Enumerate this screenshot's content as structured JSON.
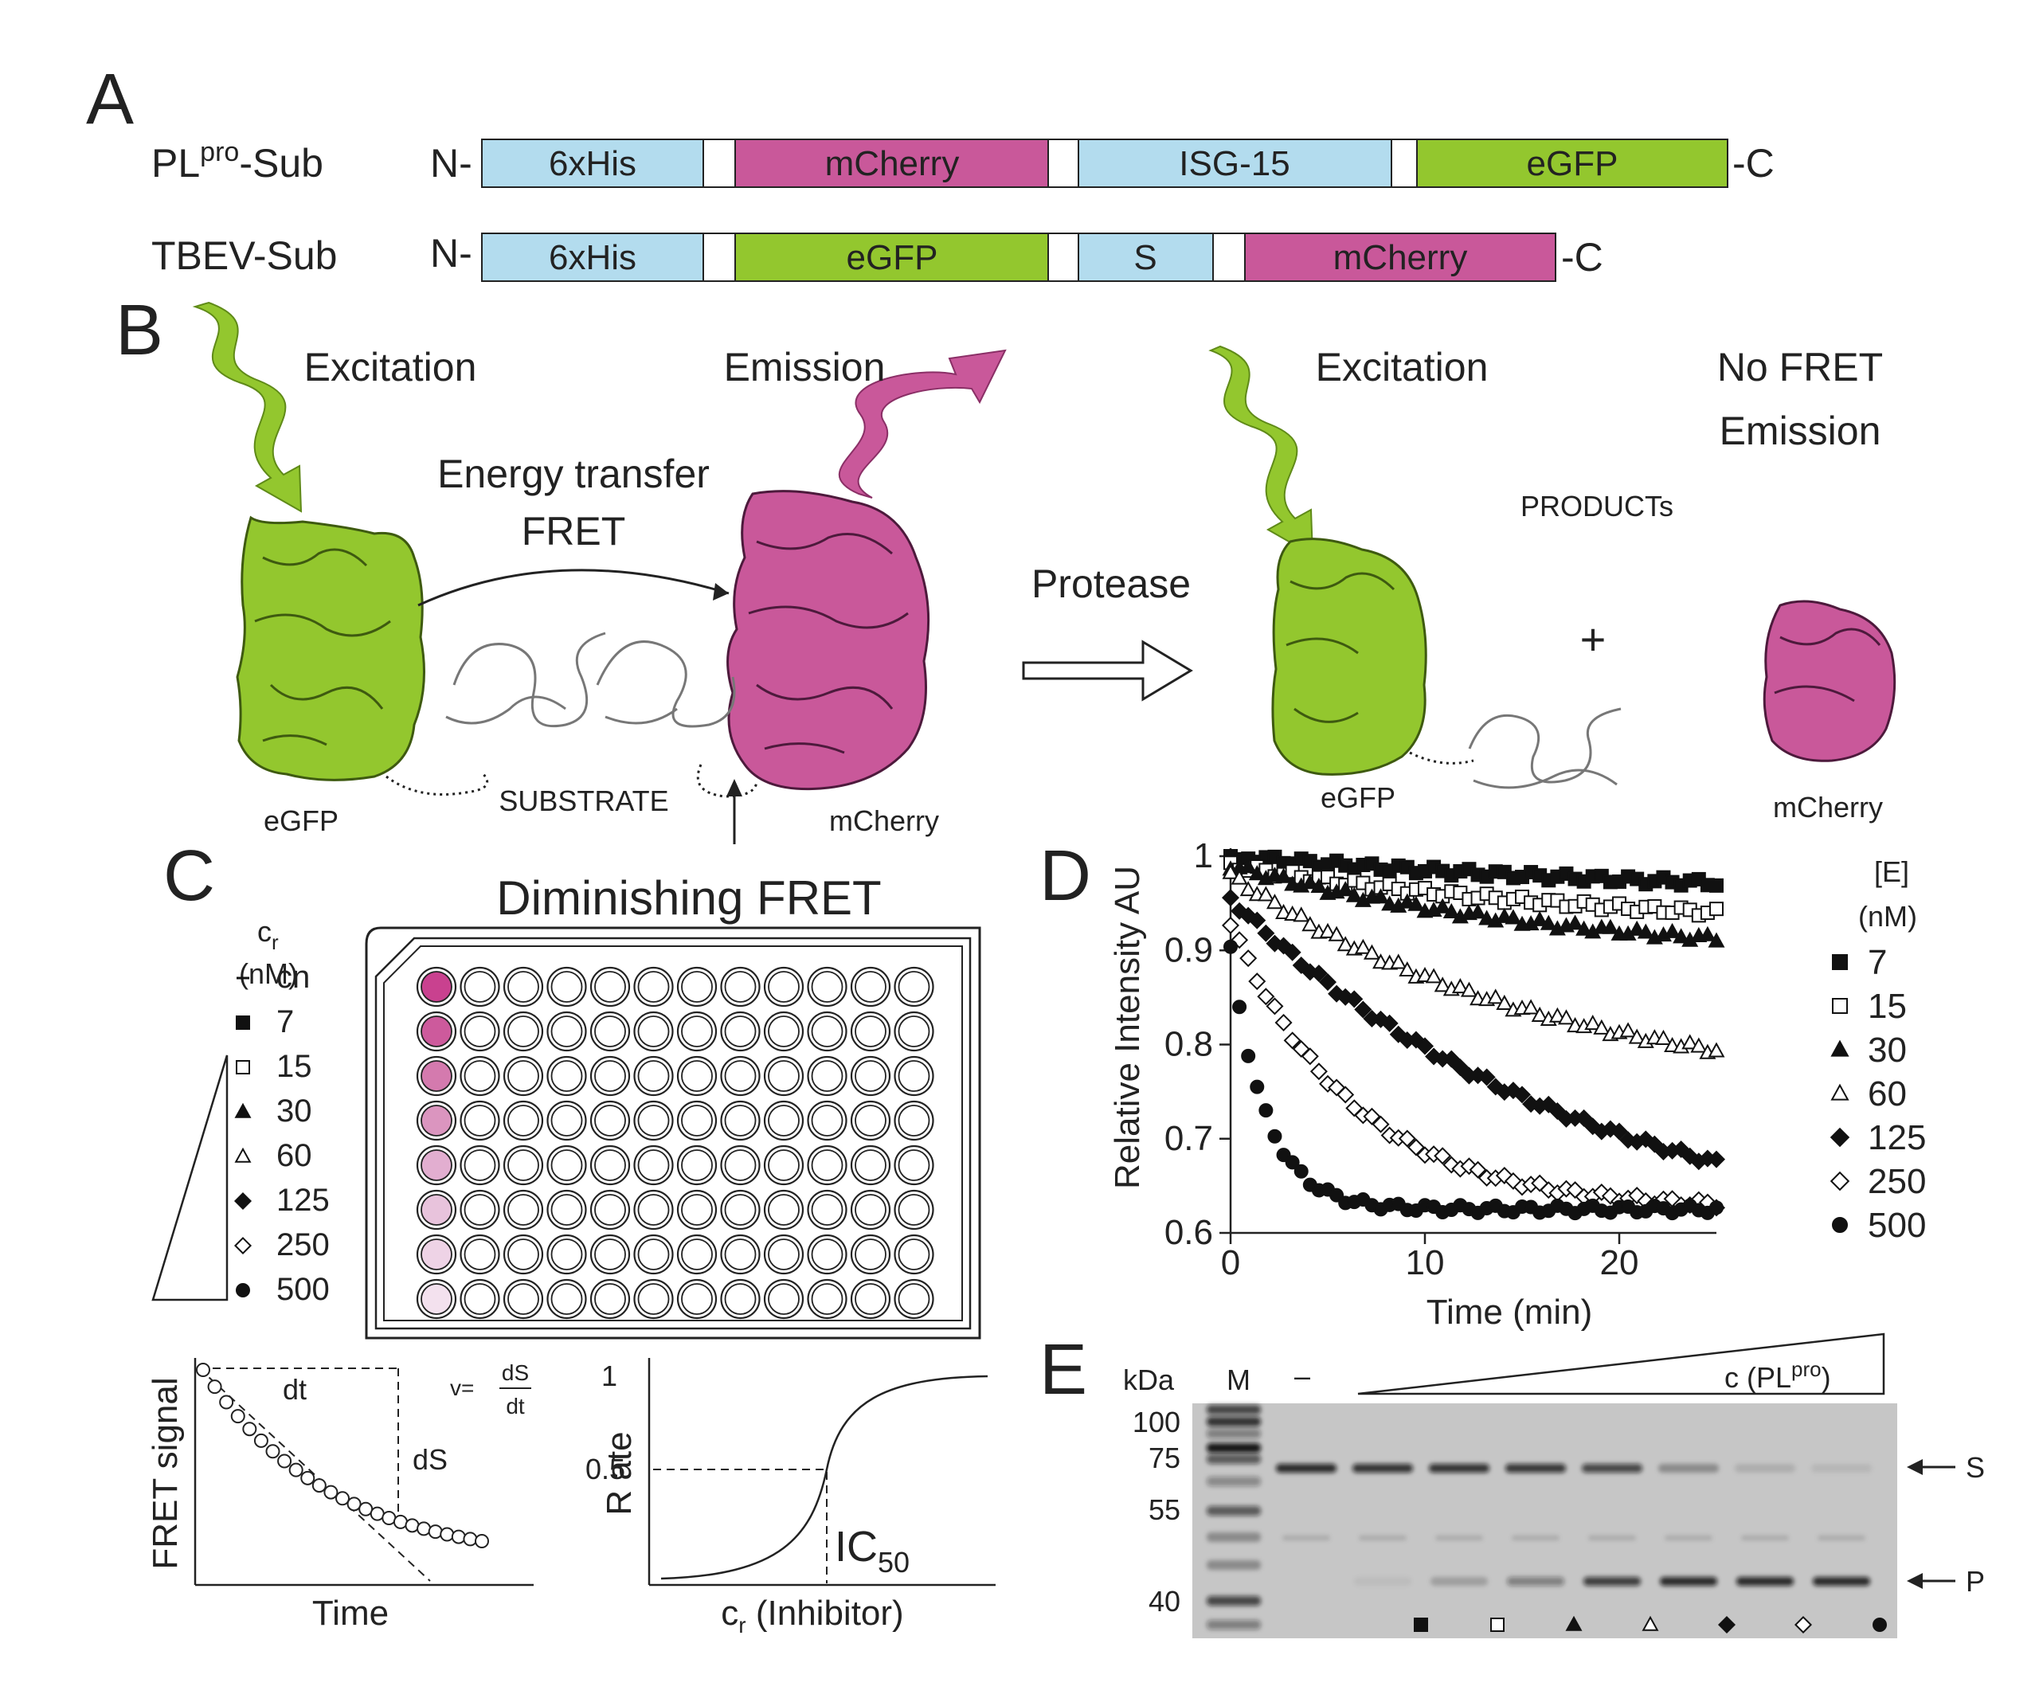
{
  "panels": {
    "a": "A",
    "b": "B",
    "c": "C",
    "d": "D",
    "e": "E"
  },
  "colors": {
    "his": "#b3dcee",
    "mcherry": "#c9589a",
    "isg": "#b3dcee",
    "egfp": "#93c72e",
    "link": "#ffffff",
    "text": "#222222"
  },
  "panel_a": {
    "construct1": {
      "name_main": "PL",
      "name_sup": "pro",
      "name_tail": "-Sub",
      "n_term": "N-",
      "c_term": "-C",
      "domains": [
        "6xHis",
        "",
        "mCherry",
        "",
        "ISG-15",
        "",
        "eGFP"
      ]
    },
    "construct2": {
      "name": "TBEV-Sub",
      "n_term": "N-",
      "c_term": "-C",
      "domains": [
        "6xHis",
        "",
        "eGFP",
        "",
        "S",
        "",
        "mCherry"
      ]
    }
  },
  "panel_b": {
    "excitation_left": "Excitation",
    "emission": "Emission",
    "energy1": "Energy transfer",
    "energy2": "FRET",
    "protease": "Protease",
    "excitation_right": "Excitation",
    "nofret1": "No FRET",
    "nofret2": "Emission",
    "products": "PRODUCTs",
    "plus": "+",
    "egfp_left": "eGFP",
    "substrate": "SUBSTRATE",
    "mcherry_left": "mCherry",
    "egfp_right": "eGFP",
    "mcherry_right": "mCherry"
  },
  "panel_c": {
    "title": "Diminishing FRET",
    "legend_head_c": "c",
    "legend_head_sub": "r",
    "legend_head_unit": "(nM)",
    "legend": [
      {
        "sym": "dash",
        "label": "cn"
      },
      {
        "sym": "square-filled",
        "label": "7"
      },
      {
        "sym": "square-open",
        "label": "15"
      },
      {
        "sym": "triangle-filled",
        "label": "30"
      },
      {
        "sym": "triangle-open",
        "label": "60"
      },
      {
        "sym": "diamond-filled",
        "label": "125"
      },
      {
        "sym": "diamond-open",
        "label": "250"
      },
      {
        "sym": "circle-filled",
        "label": "500"
      }
    ],
    "plate_rows": 8,
    "plate_cols": 12,
    "well_colors": [
      "#c9418f",
      "#cd5a9c",
      "#d47aae",
      "#db95bf",
      "#e2aed0",
      "#e8c3dc",
      "#eed3e6",
      "#f3e1ee"
    ],
    "kinetics": {
      "ylabel": "FRET signal",
      "xlabel": "Time",
      "dt": "dt",
      "ds": "dS",
      "v": "v=",
      "frac_num": "dS",
      "frac_den": "dt"
    },
    "dose": {
      "ylabel": "R  ate",
      "xlabel_main": "c",
      "xlabel_sub": "r",
      "xlabel_tail": " (Inhibitor)",
      "y1": "1",
      "y05": "0.5",
      "ic": "IC",
      "ic_sub": "50"
    }
  },
  "chart_data": {
    "type": "scatter",
    "xlabel": "Time (min)",
    "ylabel": "Relative Intensity AU",
    "xlim": [
      0,
      25
    ],
    "ylim": [
      0.6,
      1.0
    ],
    "xticks": [
      0,
      10,
      20
    ],
    "yticks": [
      0.6,
      0.7,
      0.8,
      0.9,
      1.0
    ],
    "ytick_labels": [
      "0.6",
      "0.7",
      "0.8",
      "0.9",
      "1"
    ],
    "legend_title": "[E]",
    "legend_unit": "(nM)",
    "series": [
      {
        "name": "7",
        "marker": "square-filled",
        "y0": 1.0,
        "plateau": 0.955,
        "k": 0.04
      },
      {
        "name": "15",
        "marker": "square-open",
        "y0": 0.99,
        "plateau": 0.92,
        "k": 0.05
      },
      {
        "name": "30",
        "marker": "triangle-filled",
        "y0": 0.99,
        "plateau": 0.89,
        "k": 0.06
      },
      {
        "name": "60",
        "marker": "triangle-open",
        "y0": 0.98,
        "plateau": 0.74,
        "k": 0.06
      },
      {
        "name": "125",
        "marker": "diamond-filled",
        "y0": 0.955,
        "plateau": 0.58,
        "k": 0.055
      },
      {
        "name": "250",
        "marker": "diamond-open",
        "y0": 0.93,
        "plateau": 0.625,
        "k": 0.16
      },
      {
        "name": "500",
        "marker": "circle-filled",
        "y0": 0.9,
        "plateau": 0.625,
        "k": 0.55
      }
    ]
  },
  "panel_e": {
    "kda": "kDa",
    "m": "M",
    "dash": "–",
    "conc_main": "c (PL",
    "conc_sup": "pro",
    "conc_tail": ")",
    "markers": [
      "100",
      "75",
      "55",
      "40"
    ],
    "s_label": "S",
    "p_label": "P",
    "lanes": [
      {
        "sym": "none",
        "s": 0.85,
        "p": 0.0
      },
      {
        "sym": "square-filled",
        "s": 0.8,
        "p": 0.05
      },
      {
        "sym": "square-open",
        "s": 0.8,
        "p": 0.2
      },
      {
        "sym": "triangle-filled",
        "s": 0.78,
        "p": 0.4
      },
      {
        "sym": "triangle-open",
        "s": 0.7,
        "p": 0.75
      },
      {
        "sym": "diamond-filled",
        "s": 0.3,
        "p": 0.85
      },
      {
        "sym": "diamond-open",
        "s": 0.12,
        "p": 0.85
      },
      {
        "sym": "circle-filled",
        "s": 0.08,
        "p": 0.85
      }
    ]
  }
}
